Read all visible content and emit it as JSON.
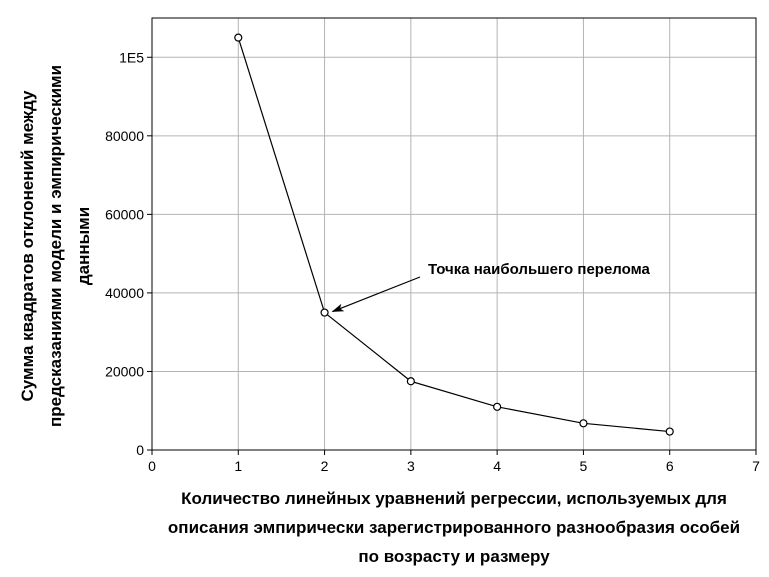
{
  "chart_data": {
    "type": "line",
    "x": [
      1,
      2,
      3,
      4,
      5,
      6
    ],
    "series": [
      {
        "values": [
          105000,
          35000,
          17500,
          11000,
          6800,
          4700
        ]
      }
    ],
    "xlim": [
      0,
      7
    ],
    "ylim": [
      0,
      110000
    ],
    "x_ticks": [
      "0",
      "1",
      "2",
      "3",
      "4",
      "5",
      "6",
      "7"
    ],
    "y_ticks": [
      {
        "value": 0,
        "label": "0"
      },
      {
        "value": 20000,
        "label": "20000"
      },
      {
        "value": 40000,
        "label": "40000"
      },
      {
        "value": 60000,
        "label": "60000"
      },
      {
        "value": 80000,
        "label": "80000"
      },
      {
        "value": 100000,
        "label": "1E5"
      }
    ],
    "xlabel_lines": [
      "Количество линейных уравнений регрессии, используемых для",
      "описания эмпирически зарегистрированного разнообразия особей",
      "по возрасту и размеру"
    ],
    "ylabel_lines": [
      "Сумма квадратов отклонений между",
      "предсказаниями модели и эмпирическими",
      "данными"
    ],
    "annotation": {
      "text": "Точка наибольшего перелома",
      "x": 2,
      "y": 35000
    },
    "grid": true,
    "marker": "open-circle",
    "line_color": "#000000",
    "grid_color": "#b4b4b4"
  }
}
